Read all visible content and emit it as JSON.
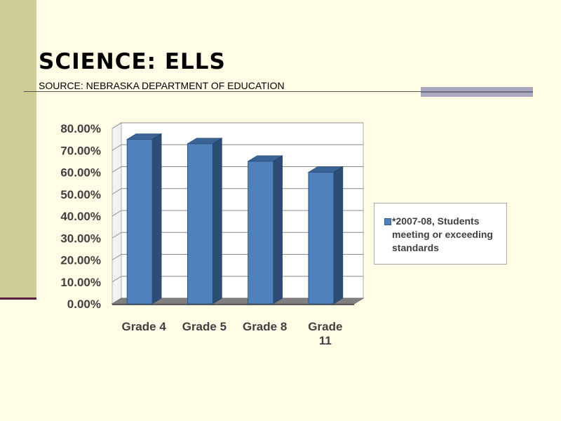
{
  "slide": {
    "title": "SCIENCE: ELLS",
    "subtitle": "SOURCE: NEBRASKA DEPARTMENT OF EDUCATION"
  },
  "chart_data": {
    "type": "bar",
    "style": "3d-column",
    "categories": [
      "Grade 4",
      "Grade 5",
      "Grade 8",
      "Grade 11"
    ],
    "category_labels": [
      [
        "Grade 4"
      ],
      [
        "Grade 5"
      ],
      [
        "Grade 8"
      ],
      [
        "Grade",
        "11"
      ]
    ],
    "series": [
      {
        "name": "*2007-08, Students meeting or exceeding standards",
        "values": [
          0.75,
          0.73,
          0.65,
          0.6
        ]
      }
    ],
    "ylim": [
      0,
      0.8
    ],
    "yticks": [
      "0.00%",
      "10.00%",
      "20.00%",
      "30.00%",
      "40.00%",
      "50.00%",
      "60.00%",
      "70.00%",
      "80.00%"
    ],
    "grid": true,
    "legend_position": "right",
    "legend_lines": [
      "*2007-08, Students",
      "meeting or exceeding",
      "standards"
    ],
    "colors": {
      "bar_front": "#4f81bd",
      "bar_side": "#2c4d75",
      "bar_top": "#3a6396",
      "floor": "#808080"
    }
  }
}
